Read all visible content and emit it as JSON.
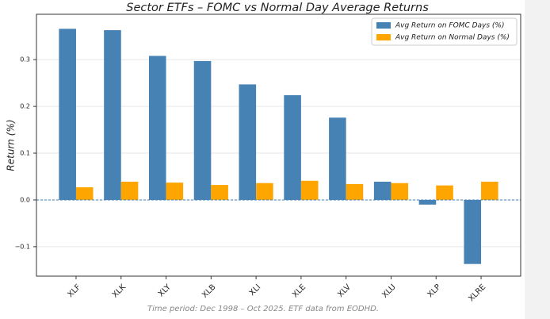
{
  "chart_data": {
    "type": "bar",
    "title": "Sector ETFs – FOMC vs Normal Day Average Returns",
    "y_label": "Return (%)",
    "footnote": "Time period: Dec 1998 – Oct 2025. ETF data from EODHD.",
    "categories": [
      "XLF",
      "XLK",
      "XLY",
      "XLB",
      "XLI",
      "XLE",
      "XLV",
      "XLU",
      "XLP",
      "XLRE"
    ],
    "series": [
      {
        "name": "Avg Return on FOMC Days (%)",
        "color": "#4682b4",
        "values": [
          0.366,
          0.363,
          0.308,
          0.297,
          0.247,
          0.224,
          0.176,
          0.039,
          -0.01,
          -0.137
        ]
      },
      {
        "name": "Avg Return on Normal Days (%)",
        "color": "#ffa500",
        "values": [
          0.027,
          0.039,
          0.037,
          0.032,
          0.036,
          0.041,
          0.034,
          0.036,
          0.031,
          0.039
        ]
      }
    ],
    "ylim": [
      -0.163,
      0.397
    ],
    "yticks": [
      {
        "value": -0.1,
        "label": "−0.1"
      },
      {
        "value": 0,
        "label": "0.0"
      },
      0.1,
      0.2,
      0.3
    ],
    "grid": true,
    "zero_line": true,
    "legend": "upper right"
  }
}
